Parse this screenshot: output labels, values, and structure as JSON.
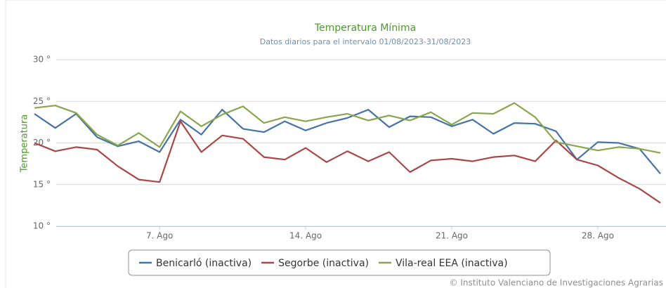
{
  "chart_data": {
    "type": "line",
    "title": "Temperatura Mínima",
    "subtitle": "Datos diarios para el intervalo 01/08/2023-31/08/2023",
    "y_label": "Temperatura",
    "credits": "© Instituto Valenciano de Investigaciones Agrarias",
    "categories": [
      null,
      null,
      null,
      null,
      null,
      null,
      "7. Ago",
      null,
      null,
      null,
      null,
      null,
      null,
      "14. Ago",
      null,
      null,
      null,
      null,
      null,
      null,
      "21. Ago",
      null,
      null,
      null,
      null,
      null,
      null,
      "28. Ago",
      null,
      null,
      null
    ],
    "series": [
      {
        "name": "Benicarló (inactiva)",
        "color": "#4572a7",
        "values": [
          23.5,
          21.8,
          23.5,
          20.7,
          19.6,
          20.2,
          18.9,
          22.8,
          21.0,
          24.0,
          21.7,
          21.3,
          22.6,
          21.5,
          22.4,
          23.0,
          24.0,
          21.9,
          23.2,
          23.1,
          22.0,
          22.8,
          21.1,
          22.4,
          22.3,
          21.4,
          18.0,
          20.1,
          20.0,
          19.3,
          16.3
        ]
      },
      {
        "name": "Segorbe (inactiva)",
        "color": "#aa4643",
        "values": [
          20.0,
          19.0,
          19.5,
          19.2,
          17.2,
          15.6,
          15.3,
          22.6,
          18.9,
          20.9,
          20.5,
          18.3,
          18.0,
          19.4,
          17.7,
          19.0,
          17.8,
          18.9,
          16.5,
          17.9,
          18.1,
          17.8,
          18.3,
          18.5,
          17.8,
          20.3,
          18.0,
          17.3,
          15.8,
          14.5,
          12.8
        ]
      },
      {
        "name": "Vila-real EEA (inactiva)",
        "color": "#89a54e",
        "values": [
          24.2,
          24.5,
          23.6,
          21.0,
          19.7,
          21.2,
          19.5,
          23.8,
          22.0,
          23.4,
          24.4,
          22.4,
          23.1,
          22.6,
          23.1,
          23.5,
          22.7,
          23.3,
          22.7,
          23.7,
          22.2,
          23.6,
          23.5,
          24.8,
          23.1,
          20.1,
          19.6,
          19.1,
          19.5,
          19.3,
          18.8
        ]
      }
    ],
    "ylim": [
      10,
      30
    ],
    "yticks": [
      {
        "value": 10,
        "label": "10 °"
      },
      {
        "value": 15,
        "label": "15 °"
      },
      {
        "value": 20,
        "label": "20 °"
      },
      {
        "value": 25,
        "label": "25 °"
      },
      {
        "value": 30,
        "label": "30 °"
      }
    ],
    "grid": true,
    "legend": "bottom"
  }
}
